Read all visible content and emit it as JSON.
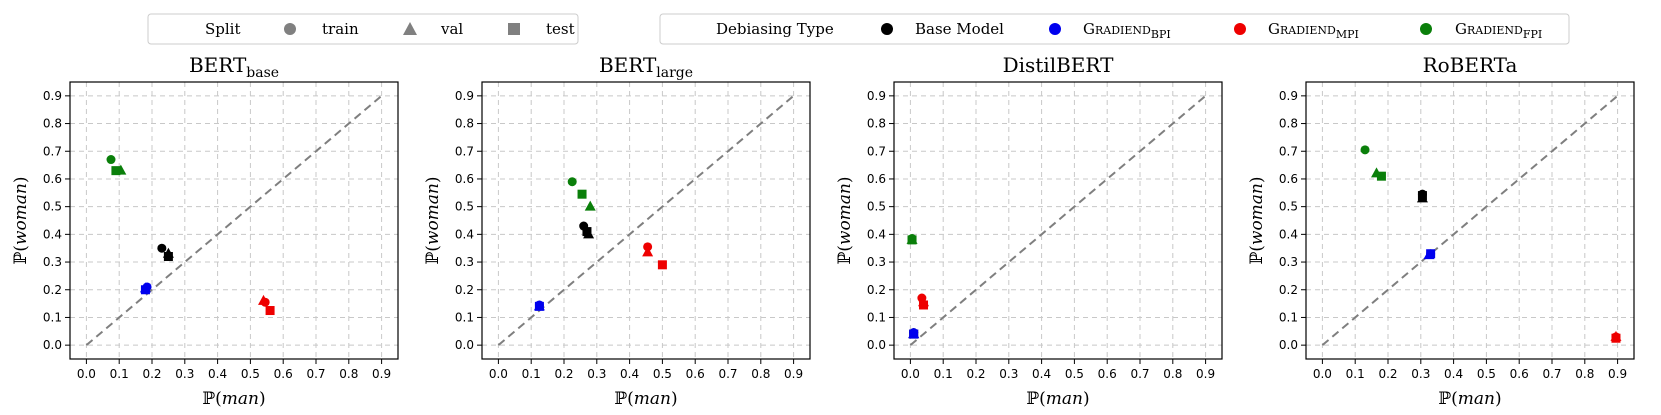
{
  "legend_split": {
    "title": "Split",
    "items": [
      {
        "label": "train",
        "marker": "circle"
      },
      {
        "label": "val",
        "marker": "triangle"
      },
      {
        "label": "test",
        "marker": "square"
      }
    ],
    "color": "#808080"
  },
  "legend_debias": {
    "title": "Debiasing Type",
    "items": [
      {
        "label": "Base Model",
        "color": "#000000"
      },
      {
        "label_main": "Gradiend",
        "label_sub": "BPI",
        "color": "#0000ee"
      },
      {
        "label_main": "Gradiend",
        "label_sub": "MPI",
        "color": "#ee0000"
      },
      {
        "label_main": "Gradiend",
        "label_sub": "FPI",
        "color": "#0a7f0a"
      }
    ]
  },
  "axis_text": {
    "xlabel_prefix": "ℙ(",
    "xlabel_var": "man",
    "xlabel_suffix": ")",
    "ylabel_prefix": "ℙ(",
    "ylabel_var": "woman",
    "ylabel_suffix": ")"
  },
  "chart_data": [
    {
      "type": "scatter",
      "title_main": "BERT",
      "title_sub": "base",
      "xlim": [
        -0.05,
        0.95
      ],
      "ylim": [
        -0.05,
        0.95
      ],
      "ticks": [
        0.0,
        0.1,
        0.2,
        0.3,
        0.4,
        0.5,
        0.6,
        0.7,
        0.8,
        0.9
      ],
      "tick_labels": [
        "0.0",
        "0.1",
        "0.2",
        "0.3",
        "0.4",
        "0.5",
        "0.6",
        "0.7",
        "0.8",
        "0.9"
      ],
      "diagonal": true,
      "grid": true,
      "series": [
        {
          "name": "Base Model",
          "color": "#000000",
          "points": {
            "train": [
              0.23,
              0.35
            ],
            "val": [
              0.25,
              0.33
            ],
            "test": [
              0.25,
              0.32
            ]
          }
        },
        {
          "name": "Gradiend BPI",
          "color": "#0000ee",
          "points": {
            "train": [
              0.185,
              0.21
            ],
            "val": [
              0.18,
              0.205
            ],
            "test": [
              0.18,
              0.2
            ]
          }
        },
        {
          "name": "Gradiend MPI",
          "color": "#ee0000",
          "points": {
            "train": [
              0.545,
              0.155
            ],
            "val": [
              0.54,
              0.16
            ],
            "test": [
              0.56,
              0.125
            ]
          }
        },
        {
          "name": "Gradiend FPI",
          "color": "#0a7f0a",
          "points": {
            "train": [
              0.075,
              0.67
            ],
            "val": [
              0.105,
              0.63
            ],
            "test": [
              0.09,
              0.63
            ]
          }
        }
      ]
    },
    {
      "type": "scatter",
      "title_main": "BERT",
      "title_sub": "large",
      "xlim": [
        -0.05,
        0.95
      ],
      "ylim": [
        -0.05,
        0.95
      ],
      "ticks": [
        0.0,
        0.1,
        0.2,
        0.3,
        0.4,
        0.5,
        0.6,
        0.7,
        0.8,
        0.9
      ],
      "tick_labels": [
        "0.0",
        "0.1",
        "0.2",
        "0.3",
        "0.4",
        "0.5",
        "0.6",
        "0.7",
        "0.8",
        "0.9"
      ],
      "diagonal": true,
      "grid": true,
      "series": [
        {
          "name": "Base Model",
          "color": "#000000",
          "points": {
            "train": [
              0.26,
              0.43
            ],
            "val": [
              0.275,
              0.4
            ],
            "test": [
              0.27,
              0.41
            ]
          }
        },
        {
          "name": "Gradiend BPI",
          "color": "#0000ee",
          "points": {
            "train": [
              0.125,
              0.145
            ],
            "val": [
              0.125,
              0.14
            ],
            "test": [
              0.125,
              0.14
            ]
          }
        },
        {
          "name": "Gradiend MPI",
          "color": "#ee0000",
          "points": {
            "train": [
              0.455,
              0.355
            ],
            "val": [
              0.455,
              0.335
            ],
            "test": [
              0.5,
              0.29
            ]
          }
        },
        {
          "name": "Gradiend FPI",
          "color": "#0a7f0a",
          "points": {
            "train": [
              0.225,
              0.59
            ],
            "val": [
              0.28,
              0.5
            ],
            "test": [
              0.255,
              0.545
            ]
          }
        }
      ]
    },
    {
      "type": "scatter",
      "title_main": "DistilBERT",
      "title_sub": "",
      "xlim": [
        -0.05,
        0.95
      ],
      "ylim": [
        -0.05,
        0.95
      ],
      "ticks": [
        0.0,
        0.1,
        0.2,
        0.3,
        0.4,
        0.5,
        0.6,
        0.7,
        0.8,
        0.9
      ],
      "tick_labels": [
        "0.0",
        "0.1",
        "0.2",
        "0.3",
        "0.4",
        "0.5",
        "0.6",
        "0.7",
        "0.8",
        "0.9"
      ],
      "diagonal": true,
      "grid": true,
      "series": [
        {
          "name": "Base Model",
          "color": "#000000",
          "points": {
            "train": [
              0.01,
              0.045
            ],
            "val": [
              0.01,
              0.04
            ],
            "test": [
              0.01,
              0.04
            ]
          }
        },
        {
          "name": "Gradiend BPI",
          "color": "#0000ee",
          "points": {
            "train": [
              0.01,
              0.045
            ],
            "val": [
              0.01,
              0.04
            ],
            "test": [
              0.01,
              0.04
            ]
          }
        },
        {
          "name": "Gradiend MPI",
          "color": "#ee0000",
          "points": {
            "train": [
              0.035,
              0.17
            ],
            "val": [
              0.04,
              0.155
            ],
            "test": [
              0.04,
              0.145
            ]
          }
        },
        {
          "name": "Gradiend FPI",
          "color": "#0a7f0a",
          "points": {
            "train": [
              0.005,
              0.385
            ],
            "val": [
              0.005,
              0.38
            ],
            "test": [
              0.005,
              0.38
            ]
          }
        }
      ]
    },
    {
      "type": "scatter",
      "title_main": "RoBERTa",
      "title_sub": "",
      "xlim": [
        -0.05,
        0.95
      ],
      "ylim": [
        -0.05,
        0.95
      ],
      "ticks": [
        0.0,
        0.1,
        0.2,
        0.3,
        0.4,
        0.5,
        0.6,
        0.7,
        0.8,
        0.9
      ],
      "tick_labels": [
        "0.0",
        "0.1",
        "0.2",
        "0.3",
        "0.4",
        "0.5",
        "0.6",
        "0.7",
        "0.8",
        "0.9"
      ],
      "diagonal": true,
      "grid": true,
      "series": [
        {
          "name": "Base Model",
          "color": "#000000",
          "points": {
            "train": [
              0.305,
              0.545
            ],
            "val": [
              0.305,
              0.53
            ],
            "test": [
              0.305,
              0.54
            ]
          }
        },
        {
          "name": "Gradiend BPI",
          "color": "#0000ee",
          "points": {
            "train": [
              0.33,
              0.33
            ],
            "val": [
              0.325,
              0.325
            ],
            "test": [
              0.33,
              0.33
            ]
          }
        },
        {
          "name": "Gradiend MPI",
          "color": "#ee0000",
          "points": {
            "train": [
              0.895,
              0.03
            ],
            "val": [
              0.895,
              0.03
            ],
            "test": [
              0.895,
              0.025
            ]
          }
        },
        {
          "name": "Gradiend FPI",
          "color": "#0a7f0a",
          "points": {
            "train": [
              0.13,
              0.705
            ],
            "val": [
              0.165,
              0.62
            ],
            "test": [
              0.18,
              0.61
            ]
          }
        }
      ]
    }
  ]
}
